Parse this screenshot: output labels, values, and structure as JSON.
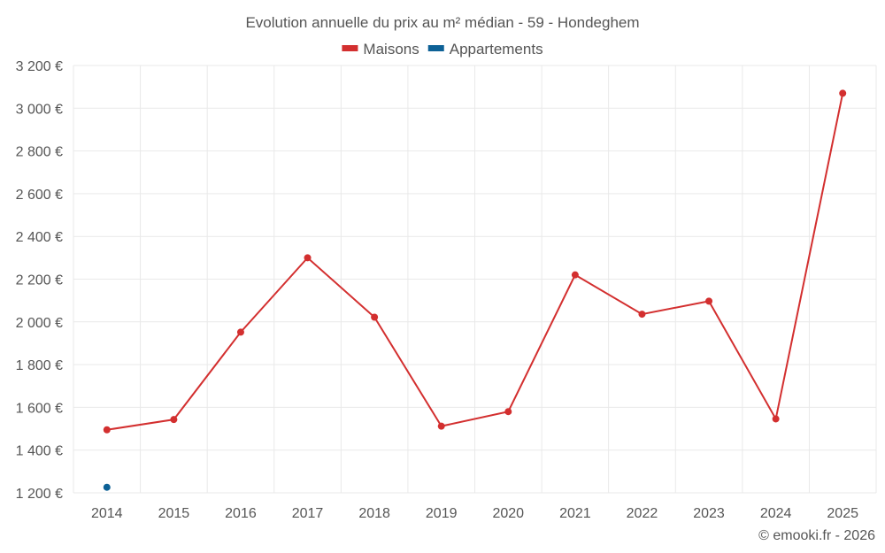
{
  "chart_data": {
    "type": "line",
    "title": "Evolution annuelle du prix au m² médian - 59 - Hondeghem",
    "categories": [
      "2014",
      "2015",
      "2016",
      "2017",
      "2018",
      "2019",
      "2020",
      "2021",
      "2022",
      "2023",
      "2024",
      "2025"
    ],
    "series": [
      {
        "name": "Maisons",
        "color": "#d32f2f",
        "values": [
          1495,
          1543,
          1952,
          2300,
          2022,
          1512,
          1580,
          2220,
          2036,
          2097,
          1546,
          3070
        ]
      },
      {
        "name": "Appartements",
        "color": "#0d6196",
        "values": [
          1226,
          null,
          null,
          null,
          null,
          null,
          null,
          null,
          null,
          null,
          null,
          null
        ]
      }
    ],
    "ylim": [
      1200,
      3200
    ],
    "yticks": [
      1200,
      1400,
      1600,
      1800,
      2000,
      2200,
      2400,
      2600,
      2800,
      3000,
      3200
    ],
    "ytick_labels": [
      "1 200 €",
      "1 400 €",
      "1 600 €",
      "1 800 €",
      "2 000 €",
      "2 200 €",
      "2 400 €",
      "2 600 €",
      "2 800 €",
      "3 000 €",
      "3 200 €"
    ],
    "grid": true,
    "legend_position": "top-center",
    "credit": "© emooki.fr - 2026"
  }
}
